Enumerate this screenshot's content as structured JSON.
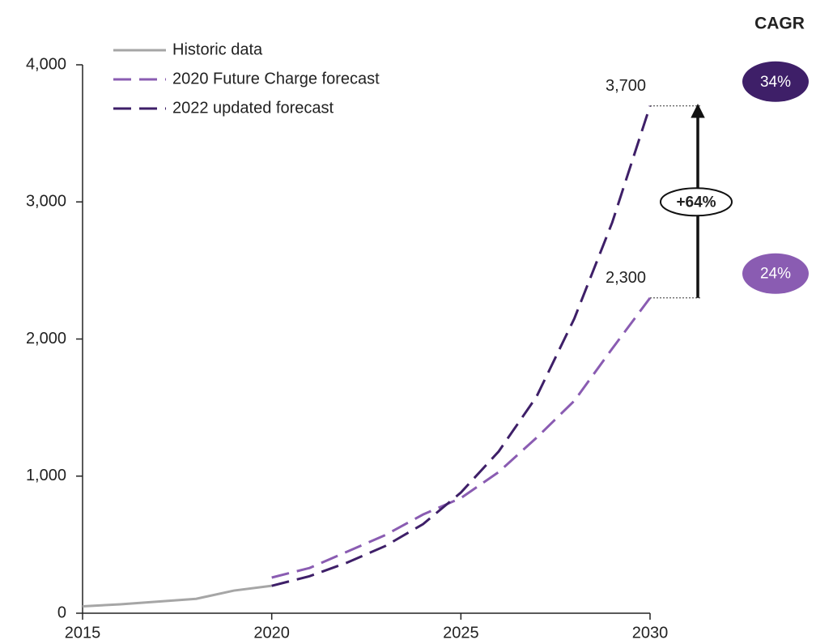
{
  "chart_data": {
    "type": "line",
    "x": [
      2015,
      2016,
      2017,
      2018,
      2019,
      2020,
      2021,
      2022,
      2023,
      2024,
      2025,
      2026,
      2027,
      2028,
      2029,
      2030
    ],
    "series": [
      {
        "name": "Historic data",
        "color": "#a6a6a6",
        "dashed": false,
        "values": [
          50,
          65,
          85,
          105,
          165,
          200,
          null,
          null,
          null,
          null,
          null,
          null,
          null,
          null,
          null,
          null
        ]
      },
      {
        "name": "2020 Future Charge forecast",
        "color": "#8a5cb2",
        "dashed": true,
        "values": [
          null,
          null,
          null,
          null,
          null,
          260,
          330,
          450,
          570,
          720,
          840,
          1030,
          1280,
          1550,
          1930,
          2300
        ],
        "value_labels": [
          null,
          null,
          null,
          null,
          null,
          null,
          null,
          null,
          null,
          null,
          null,
          null,
          null,
          null,
          null,
          "2,300"
        ]
      },
      {
        "name": "2022 updated forecast",
        "color": "#3e1f68",
        "dashed": true,
        "values": [
          null,
          null,
          null,
          null,
          null,
          200,
          270,
          370,
          490,
          650,
          880,
          1180,
          1580,
          2150,
          2850,
          3700
        ],
        "value_labels": [
          null,
          null,
          null,
          null,
          null,
          null,
          null,
          null,
          null,
          null,
          null,
          null,
          null,
          null,
          null,
          "3,700"
        ]
      }
    ],
    "xlim": [
      2015,
      2030
    ],
    "xticks": [
      2015,
      2020,
      2025,
      2030
    ],
    "ylim": [
      0,
      4000
    ],
    "yticks": [
      0,
      {
        "value": 1000,
        "label": "1,000"
      },
      {
        "value": 2000,
        "label": "2,000"
      },
      {
        "value": 3000,
        "label": "3,000"
      },
      {
        "value": 4000,
        "label": "4,000"
      }
    ],
    "legend": "upper left",
    "annotation": "+64%",
    "cagr_title": "CAGR",
    "cagr_labels": [
      "34%",
      "24%"
    ]
  }
}
